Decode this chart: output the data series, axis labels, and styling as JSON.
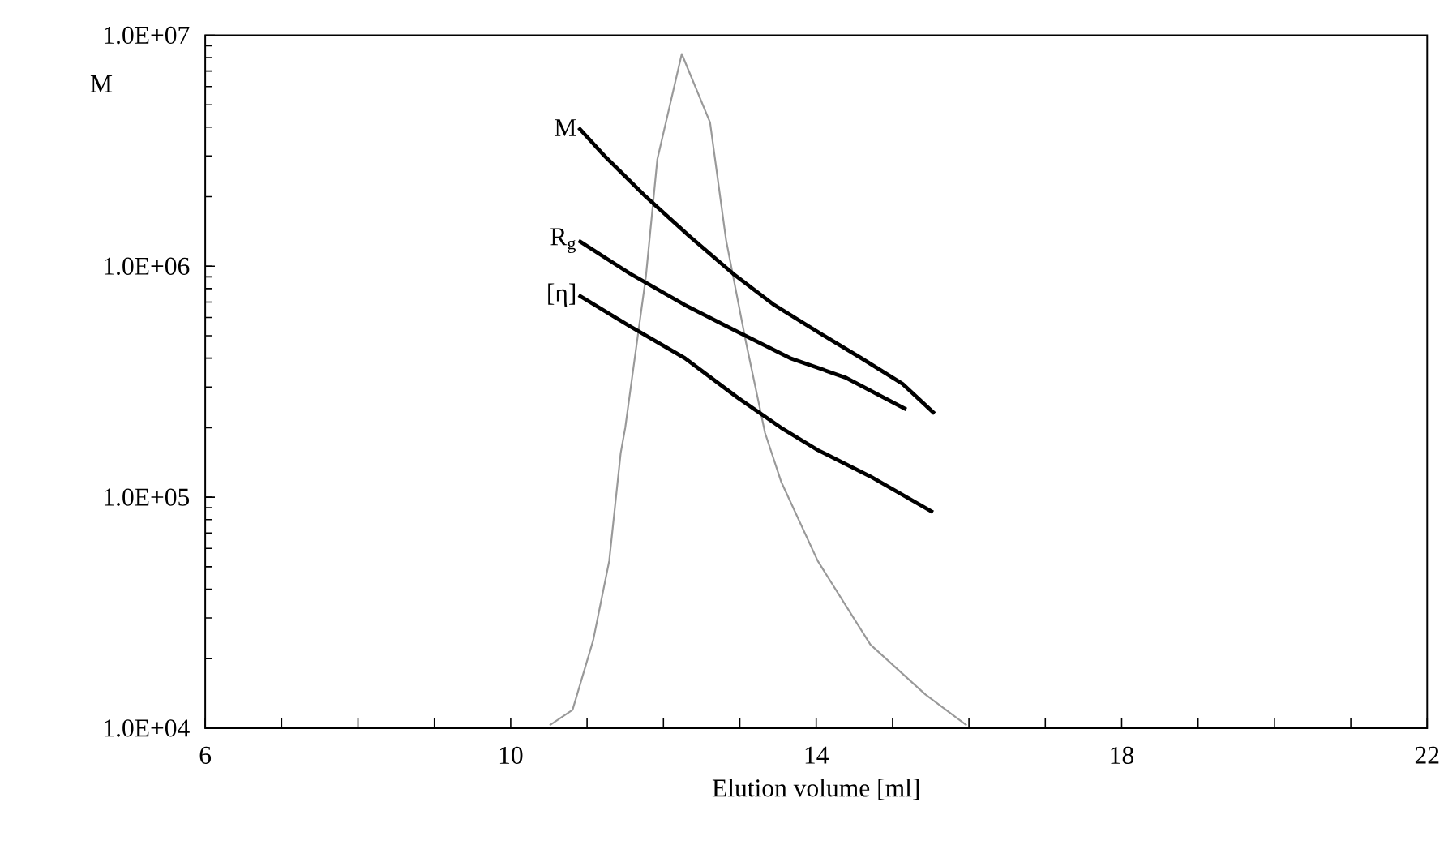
{
  "chart_data": {
    "type": "line",
    "xlabel": "Elution volume [ml]",
    "ylabel": "M",
    "log": "y",
    "marker": "none",
    "line_style": "solid",
    "xlim": [
      6,
      22
    ],
    "ylim": [
      10000,
      10000000
    ],
    "xticks": [
      6,
      {
        "value": 7,
        "label": null
      },
      {
        "value": 8,
        "label": null
      },
      {
        "value": 9,
        "label": null
      },
      10,
      {
        "value": 11,
        "label": null
      },
      {
        "value": 12,
        "label": null
      },
      {
        "value": 13,
        "label": null
      },
      14,
      {
        "value": 15,
        "label": null
      },
      {
        "value": 16,
        "label": null
      },
      {
        "value": 17,
        "label": null
      },
      18,
      {
        "value": 19,
        "label": null
      },
      {
        "value": 20,
        "label": null
      },
      {
        "value": 21,
        "label": null
      },
      22
    ],
    "yticks": [
      {
        "value": 10000,
        "label": "1.0E+04"
      },
      {
        "value": 100000,
        "label": "1.0E+05"
      },
      {
        "value": 1000000,
        "label": "1.0E+06"
      },
      {
        "value": 10000000,
        "label": "1.0E+07"
      }
    ],
    "series": [
      {
        "color": "#999999",
        "x": [
          10.51,
          10.81,
          11.08,
          11.29,
          11.44,
          11.5,
          11.77,
          11.92,
          12.24,
          12.61,
          12.82,
          13.08,
          13.33,
          13.54,
          14.02,
          14.71,
          15.43,
          15.97
        ],
        "values": [
          10300,
          12000,
          24000,
          53000,
          155000,
          200000,
          900000,
          2900000,
          8300000,
          4200000,
          1300000,
          470000,
          190000,
          117000,
          53000,
          23000,
          14000,
          10300
        ]
      },
      {
        "name": "M",
        "color": "#000000",
        "x": [
          10.89,
          11.23,
          11.77,
          12.34,
          12.91,
          13.45,
          14.02,
          14.59,
          15.13,
          15.55
        ],
        "values": [
          3980000,
          3000000,
          2000000,
          1350000,
          930000,
          680000,
          520000,
          400000,
          310000,
          230000
        ]
      },
      {
        "name": "R$_{g}$",
        "color": "#000000",
        "x": [
          10.89,
          11.56,
          12.28,
          12.97,
          13.66,
          14.38,
          15.18
        ],
        "values": [
          1290000,
          930000,
          680000,
          520000,
          400000,
          330000,
          240000
        ]
      },
      {
        "name": "[η]",
        "color": "#000000",
        "x": [
          10.89,
          11.56,
          12.28,
          12.97,
          13.54,
          14.02,
          14.71,
          15.53
        ],
        "values": [
          750000,
          550000,
          400000,
          270000,
          200000,
          160000,
          123000,
          86000
        ]
      }
    ]
  }
}
